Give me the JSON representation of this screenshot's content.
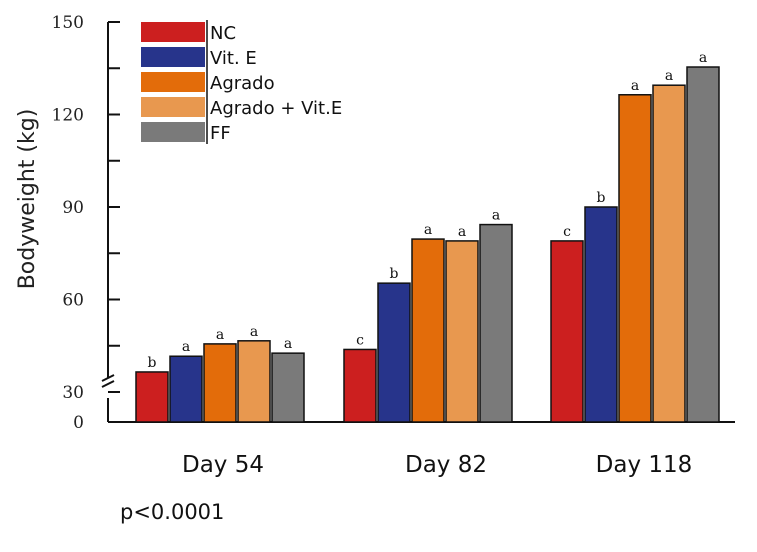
{
  "chart_data": {
    "type": "bar",
    "ylabel": "Bodyweight (kg)",
    "y_axis": {
      "break": true,
      "broken_range": [
        0,
        30
      ],
      "ylim": [
        30,
        150
      ],
      "tick_labels": [
        "0",
        "30",
        "60",
        "90",
        "120",
        "150"
      ],
      "minor_ticks": [
        45,
        75,
        105,
        135
      ]
    },
    "categories": [
      "Day 54",
      "Day 82",
      "Day 118"
    ],
    "series": [
      {
        "name": "NC",
        "color": "#cc1f1f",
        "values": [
          36.5,
          43.8,
          79
        ],
        "letters": [
          "b",
          "c",
          "c"
        ]
      },
      {
        "name": "Vit. E",
        "color": "#27348b",
        "values": [
          41.6,
          65.3,
          90
        ],
        "letters": [
          "a",
          "b",
          "b"
        ]
      },
      {
        "name": "Agrado",
        "color": "#e36c0a",
        "values": [
          45.6,
          79.6,
          126.4
        ],
        "letters": [
          "a",
          "a",
          "a"
        ]
      },
      {
        "name": "Agrado + Vit.E",
        "color": "#e8984f",
        "values": [
          46.6,
          79,
          129.5
        ],
        "letters": [
          "a",
          "a",
          "a"
        ]
      },
      {
        "name": "FF",
        "color": "#7a7a7a",
        "values": [
          42.6,
          84.3,
          135.4
        ],
        "letters": [
          "a",
          "a",
          "a"
        ]
      }
    ],
    "legend": "top-left",
    "grid": false
  },
  "annotation": {
    "pvalue": "p<0.0001"
  }
}
